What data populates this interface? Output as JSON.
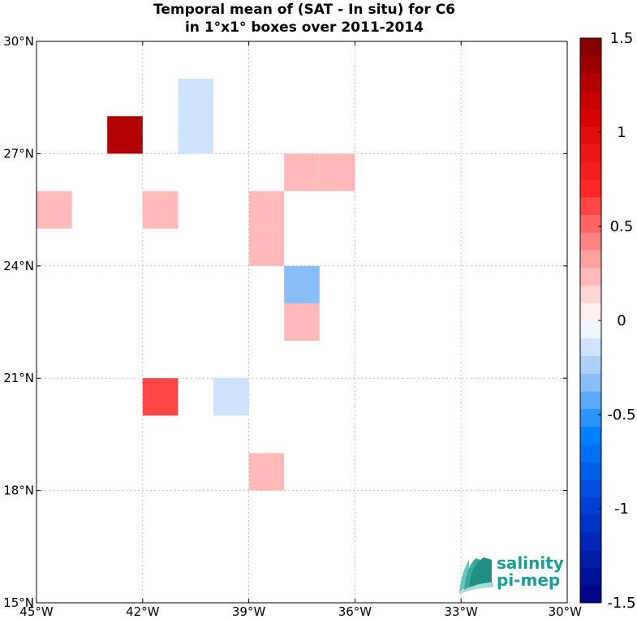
{
  "chart_data": {
    "type": "heatmap",
    "title_line1": "Temporal mean of (SAT - In situ) for C6",
    "title_line2": "in 1°x1° boxes over 2011-2014",
    "xlim": [
      -45,
      -30
    ],
    "ylim": [
      15,
      30
    ],
    "x_ticks": [
      {
        "value": -45,
        "label": "45°W"
      },
      {
        "value": -42,
        "label": "42°W"
      },
      {
        "value": -39,
        "label": "39°W"
      },
      {
        "value": -36,
        "label": "36°W"
      },
      {
        "value": -33,
        "label": "33°W"
      },
      {
        "value": -30,
        "label": "30°W"
      }
    ],
    "y_ticks": [
      {
        "value": 15,
        "label": "15°N"
      },
      {
        "value": 18,
        "label": "18°N"
      },
      {
        "value": 21,
        "label": "21°N"
      },
      {
        "value": 24,
        "label": "24°N"
      },
      {
        "value": 27,
        "label": "27°N"
      },
      {
        "value": 30,
        "label": "30°N"
      }
    ],
    "grid": true,
    "cells": [
      {
        "lon": -43,
        "lat": 27,
        "value": 1.3
      },
      {
        "lon": -41,
        "lat": 27,
        "value": -0.15
      },
      {
        "lon": -41,
        "lat": 28,
        "value": -0.15
      },
      {
        "lon": -38,
        "lat": 26,
        "value": 0.2
      },
      {
        "lon": -37,
        "lat": 26,
        "value": 0.2
      },
      {
        "lon": -45,
        "lat": 25,
        "value": 0.2
      },
      {
        "lon": -42,
        "lat": 25,
        "value": 0.2
      },
      {
        "lon": -39,
        "lat": 25,
        "value": 0.2
      },
      {
        "lon": -39,
        "lat": 24,
        "value": 0.2
      },
      {
        "lon": -38,
        "lat": 23,
        "value": -0.3
      },
      {
        "lon": -38,
        "lat": 22,
        "value": 0.2
      },
      {
        "lon": -42,
        "lat": 20,
        "value": 0.6
      },
      {
        "lon": -40,
        "lat": 20,
        "value": -0.15
      },
      {
        "lon": -39,
        "lat": 18,
        "value": 0.2
      }
    ],
    "colorbar": {
      "range": [
        -1.5,
        1.5
      ],
      "levels": 32,
      "ticks": [
        {
          "value": 1.5,
          "label": "1.5"
        },
        {
          "value": 1,
          "label": "1"
        },
        {
          "value": 0.5,
          "label": "0.5"
        },
        {
          "value": 0,
          "label": "0"
        },
        {
          "value": -0.5,
          "label": "-0.5"
        },
        {
          "value": -1,
          "label": "-1"
        },
        {
          "value": -1.5,
          "label": "-1.5"
        }
      ]
    }
  },
  "logo": {
    "line1": "salinity",
    "line2": "pi-mep"
  },
  "colors": {
    "grid": "#bfbfbf",
    "logo_text": "#1a9e96"
  }
}
